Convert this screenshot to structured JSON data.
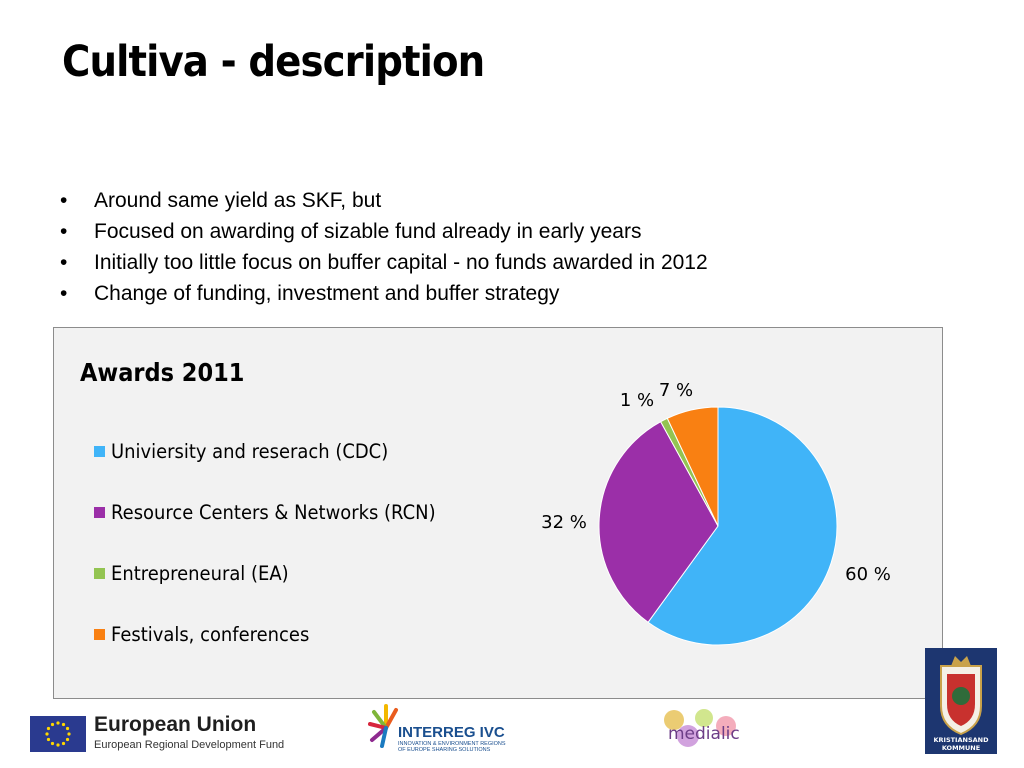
{
  "slide": {
    "title": "Cultiva - description",
    "bullets": [
      "Around same yield as SKF, but",
      "Focused on awarding of sizable fund already in early years",
      "Initially too little focus on buffer capital - no funds awarded in 2012",
      "Change of funding, investment and buffer strategy"
    ],
    "bullet_glyph": "•"
  },
  "chart_data": {
    "type": "pie",
    "title": "Awards 2011",
    "categories": [
      "Univiersity and reserach (CDC)",
      "Resource Centers & Networks (RCN)",
      "Entrepreneural (EA)",
      "Festivals, conferences"
    ],
    "values": [
      60,
      32,
      1,
      7
    ],
    "data_labels": [
      "60 %",
      "32 %",
      "1 %",
      "7 %"
    ],
    "colors": [
      "#40b4f8",
      "#9b2fa8",
      "#93c452",
      "#f98012"
    ],
    "legend_position": "left"
  },
  "footer": {
    "eu": {
      "name": "European Union",
      "subtitle": "European Regional Development Fund",
      "flag_colors": {
        "field": "#2a3a8f",
        "stars": "#ffd700"
      }
    },
    "interreg": {
      "name": "INTERREG IVC",
      "subtitle": "INNOVATION & ENVIRONMENT REGIONS OF EUROPE SHARING SOLUTIONS"
    },
    "medialic": {
      "name": "medialic"
    },
    "kristiansand": {
      "name_line1": "KRISTIANSAND",
      "name_line2": "KOMMUNE"
    }
  }
}
